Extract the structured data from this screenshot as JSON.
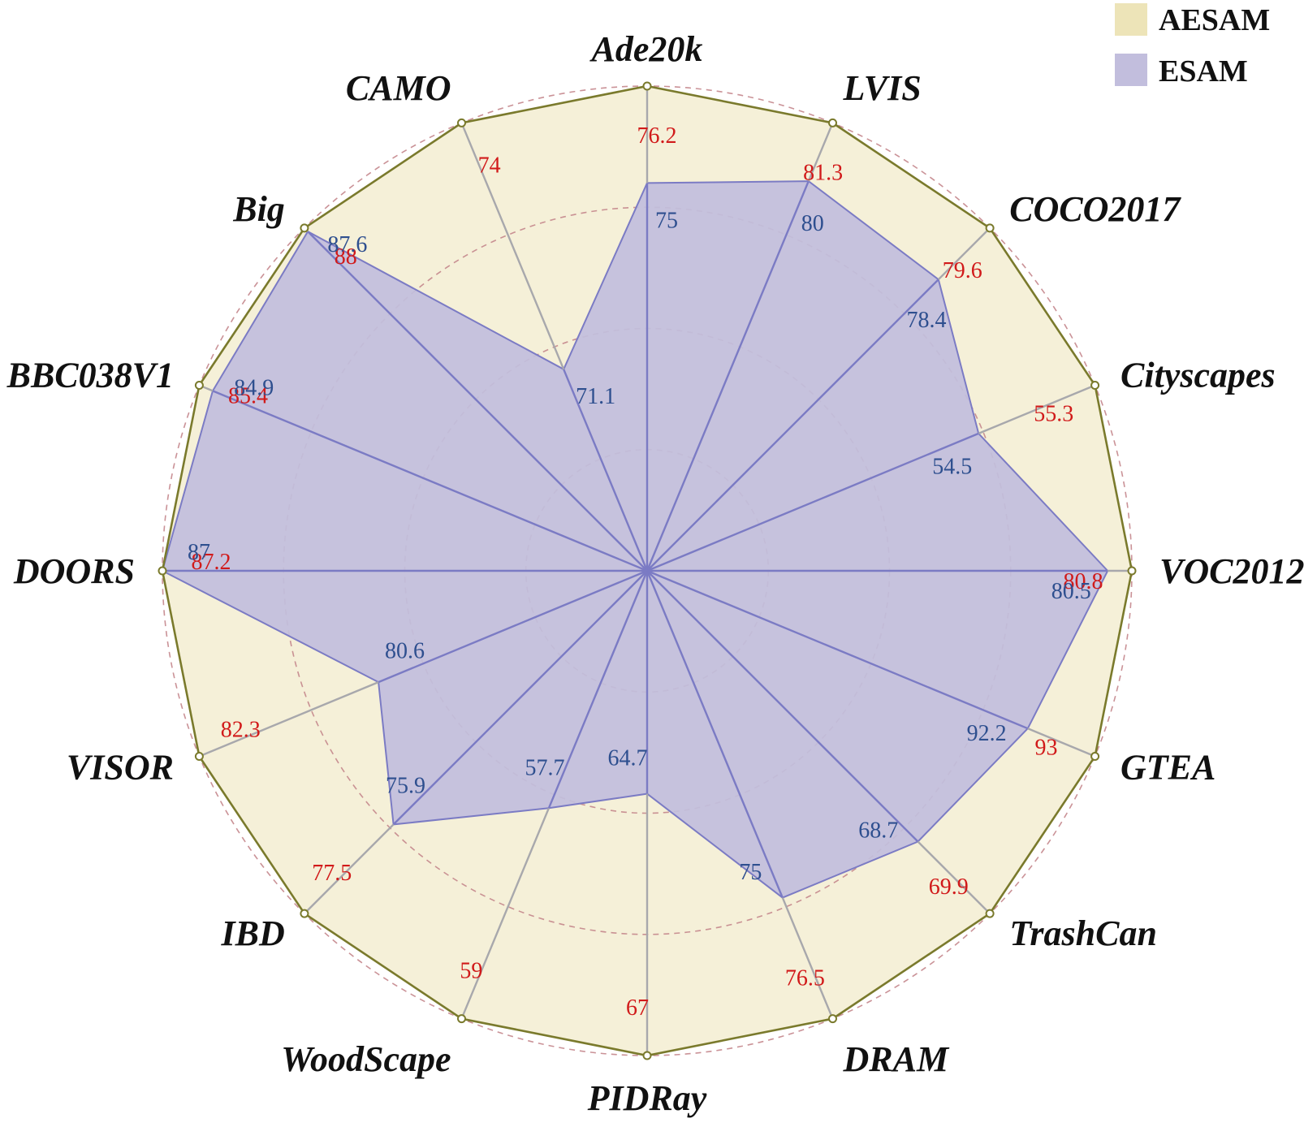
{
  "chart_data": {
    "type": "radar",
    "categories": [
      "Ade20k",
      "LVIS",
      "COCO2017",
      "Cityscapes",
      "VOC2012",
      "GTEA",
      "TrashCan",
      "DRAM",
      "PIDRay",
      "WoodScape",
      "IBD",
      "VISOR",
      "DOORS",
      "BBC038V1",
      "Big",
      "CAMO"
    ],
    "series": [
      {
        "name": "AESAM",
        "values": [
          76.2,
          81.3,
          79.6,
          55.3,
          80.8,
          93,
          69.9,
          76.5,
          67,
          59,
          77.5,
          82.3,
          87.2,
          85.4,
          88,
          74
        ],
        "labels": [
          "76.2",
          "81.3",
          "79.6",
          "55.3",
          "80.8",
          "93",
          "69.9",
          "76.5",
          "67",
          "59",
          "77.5",
          "82.3",
          "87.2",
          "85.4",
          "88",
          "74"
        ]
      },
      {
        "name": "ESAM",
        "values": [
          75,
          80,
          78.4,
          54.5,
          80.5,
          92.2,
          68.7,
          75,
          64.7,
          57.7,
          75.9,
          80.6,
          87,
          84.9,
          87.6,
          71.1
        ],
        "labels": [
          "75",
          "80",
          "78.4",
          "54.5",
          "80.5",
          "92.2",
          "68.7",
          "75",
          "64.7",
          "57.7",
          "75.9",
          "80.6",
          "87",
          "84.9",
          "87.6",
          "71.1"
        ]
      }
    ],
    "normalized_reach": {
      "AESAM": [
        1,
        1,
        1,
        1,
        1,
        1,
        1,
        1,
        1,
        1,
        1,
        1,
        1,
        1,
        1,
        1
      ],
      "ESAM": [
        0.8,
        0.87,
        0.85,
        0.74,
        0.95,
        0.85,
        0.79,
        0.73,
        0.46,
        0.53,
        0.74,
        0.6,
        1.0,
        0.97,
        0.99,
        0.45
      ]
    },
    "rings": 4,
    "grid": true,
    "legend_position": "top-right",
    "colors": {
      "AESAM_fill": "#f5f0d8",
      "AESAM_stroke": "#7a7a2c",
      "ESAM_fill": "#c2bedd",
      "ESAM_stroke": "#7b7bc4",
      "AESAM_label": "#d11a1a",
      "ESAM_label": "#2e4f8f",
      "ring": "#c4868c",
      "spoke": "#a8a8ac"
    }
  },
  "legend": {
    "items": [
      {
        "name": "AESAM",
        "color": "#ede4b8"
      },
      {
        "name": "ESAM",
        "color": "#c2bedd"
      }
    ]
  }
}
